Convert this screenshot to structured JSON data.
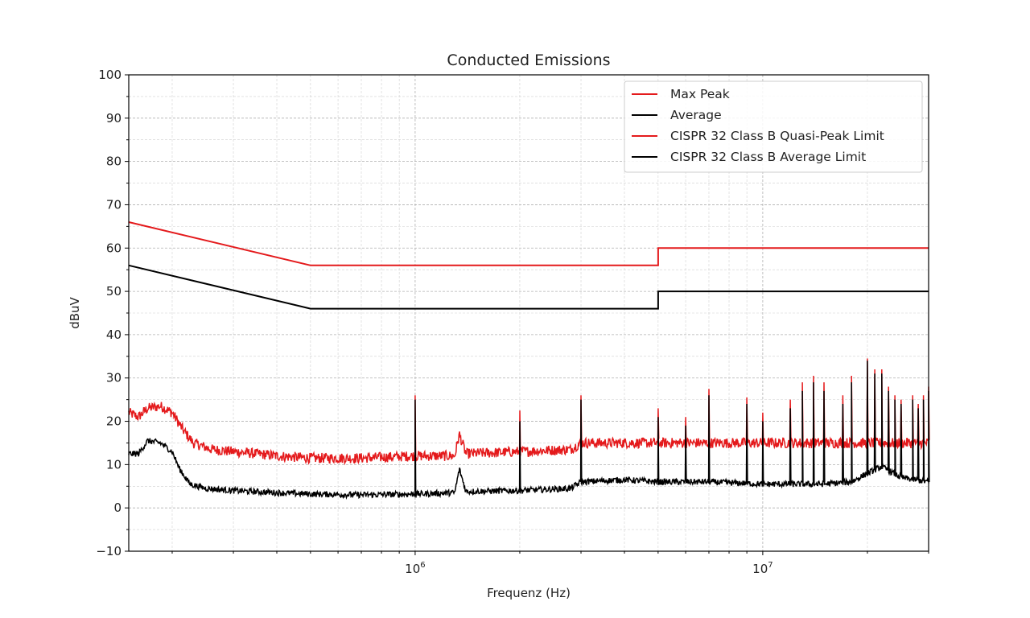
{
  "chart_data": {
    "type": "line",
    "title": "Conducted Emissions",
    "xlabel": "Frequenz (Hz)",
    "ylabel": "dBuV",
    "x_scale": "log",
    "xlim": [
      150000,
      30000000
    ],
    "ylim": [
      -10,
      100
    ],
    "y_ticks": [
      -10,
      0,
      10,
      20,
      30,
      40,
      50,
      60,
      70,
      80,
      90,
      100
    ],
    "y_tick_labels": [
      "−10",
      "0",
      "10",
      "20",
      "30",
      "40",
      "50",
      "60",
      "70",
      "80",
      "90",
      "100"
    ],
    "x_ticks": [
      1000000,
      10000000
    ],
    "x_tick_labels": [
      {
        "base": "10",
        "exp": "6"
      },
      {
        "base": "10",
        "exp": "7"
      }
    ],
    "grid": true,
    "legend_position": "top-right",
    "series": [
      {
        "name": "Max Peak",
        "color": "#e41a1c",
        "baseline": [
          [
            150000,
            22
          ],
          [
            160000,
            21
          ],
          [
            170000,
            23
          ],
          [
            185000,
            23.5
          ],
          [
            200000,
            22
          ],
          [
            215000,
            18
          ],
          [
            230000,
            15
          ],
          [
            260000,
            13.5
          ],
          [
            300000,
            13
          ],
          [
            350000,
            12.5
          ],
          [
            400000,
            12
          ],
          [
            500000,
            11.5
          ],
          [
            700000,
            11.5
          ],
          [
            1000000,
            12
          ],
          [
            1300000,
            12
          ],
          [
            1340000,
            17
          ],
          [
            1400000,
            12.5
          ],
          [
            2000000,
            13
          ],
          [
            2800000,
            13.5
          ],
          [
            3000000,
            15
          ],
          [
            5000000,
            15
          ],
          [
            10000000,
            15
          ],
          [
            20000000,
            15
          ],
          [
            30000000,
            15
          ]
        ],
        "noise": 1.2,
        "spikes": [
          [
            1000000,
            26
          ],
          [
            2000000,
            22.5
          ],
          [
            3000000,
            26
          ],
          [
            5000000,
            23
          ],
          [
            6000000,
            21
          ],
          [
            7000000,
            27.5
          ],
          [
            9000000,
            25.5
          ],
          [
            10000000,
            22
          ],
          [
            12000000,
            25
          ],
          [
            13000000,
            29
          ],
          [
            14000000,
            30.5
          ],
          [
            15000000,
            29
          ],
          [
            17000000,
            26
          ],
          [
            18000000,
            30.5
          ],
          [
            20000000,
            34.5
          ],
          [
            21000000,
            32
          ],
          [
            22000000,
            32
          ],
          [
            23000000,
            28
          ],
          [
            24000000,
            26
          ],
          [
            25000000,
            25
          ],
          [
            27000000,
            26
          ],
          [
            28000000,
            24
          ],
          [
            29000000,
            26
          ],
          [
            30000000,
            28
          ]
        ]
      },
      {
        "name": "Average",
        "color": "#000000",
        "baseline": [
          [
            150000,
            12.5
          ],
          [
            160000,
            12.5
          ],
          [
            170000,
            15.5
          ],
          [
            185000,
            15
          ],
          [
            200000,
            13
          ],
          [
            210000,
            9
          ],
          [
            225000,
            5.5
          ],
          [
            250000,
            4.5
          ],
          [
            300000,
            4
          ],
          [
            400000,
            3.5
          ],
          [
            500000,
            3.2
          ],
          [
            700000,
            3
          ],
          [
            1000000,
            3.2
          ],
          [
            1300000,
            3.5
          ],
          [
            1340000,
            9
          ],
          [
            1400000,
            3.8
          ],
          [
            2000000,
            4
          ],
          [
            2800000,
            4.5
          ],
          [
            3000000,
            6
          ],
          [
            4000000,
            6.5
          ],
          [
            5000000,
            6
          ],
          [
            7000000,
            6
          ],
          [
            10000000,
            5.5
          ],
          [
            15000000,
            5.5
          ],
          [
            18000000,
            6
          ],
          [
            20000000,
            8
          ],
          [
            22000000,
            9.5
          ],
          [
            25000000,
            7
          ],
          [
            30000000,
            6
          ]
        ],
        "noise": 0.7,
        "spikes": [
          [
            1000000,
            25
          ],
          [
            2000000,
            20
          ],
          [
            3000000,
            25
          ],
          [
            5000000,
            21
          ],
          [
            6000000,
            19
          ],
          [
            7000000,
            26
          ],
          [
            9000000,
            24
          ],
          [
            10000000,
            20
          ],
          [
            12000000,
            23
          ],
          [
            13000000,
            27
          ],
          [
            14000000,
            29
          ],
          [
            15000000,
            27
          ],
          [
            17000000,
            24
          ],
          [
            18000000,
            29
          ],
          [
            20000000,
            34
          ],
          [
            21000000,
            31
          ],
          [
            22000000,
            31
          ],
          [
            23000000,
            27
          ],
          [
            24000000,
            25
          ],
          [
            25000000,
            24
          ],
          [
            27000000,
            25
          ],
          [
            28000000,
            23
          ],
          [
            29000000,
            25
          ],
          [
            30000000,
            27
          ]
        ]
      },
      {
        "name": "CISPR 32 Class B Quasi-Peak Limit",
        "color": "#e41a1c",
        "points": [
          [
            150000,
            66
          ],
          [
            500000,
            56
          ],
          [
            5000000,
            56
          ],
          [
            5000000,
            60
          ],
          [
            30000000,
            60
          ]
        ]
      },
      {
        "name": "CISPR 32 Class B Average Limit",
        "color": "#000000",
        "points": [
          [
            150000,
            56
          ],
          [
            500000,
            46
          ],
          [
            5000000,
            46
          ],
          [
            5000000,
            50
          ],
          [
            30000000,
            50
          ]
        ]
      }
    ]
  }
}
